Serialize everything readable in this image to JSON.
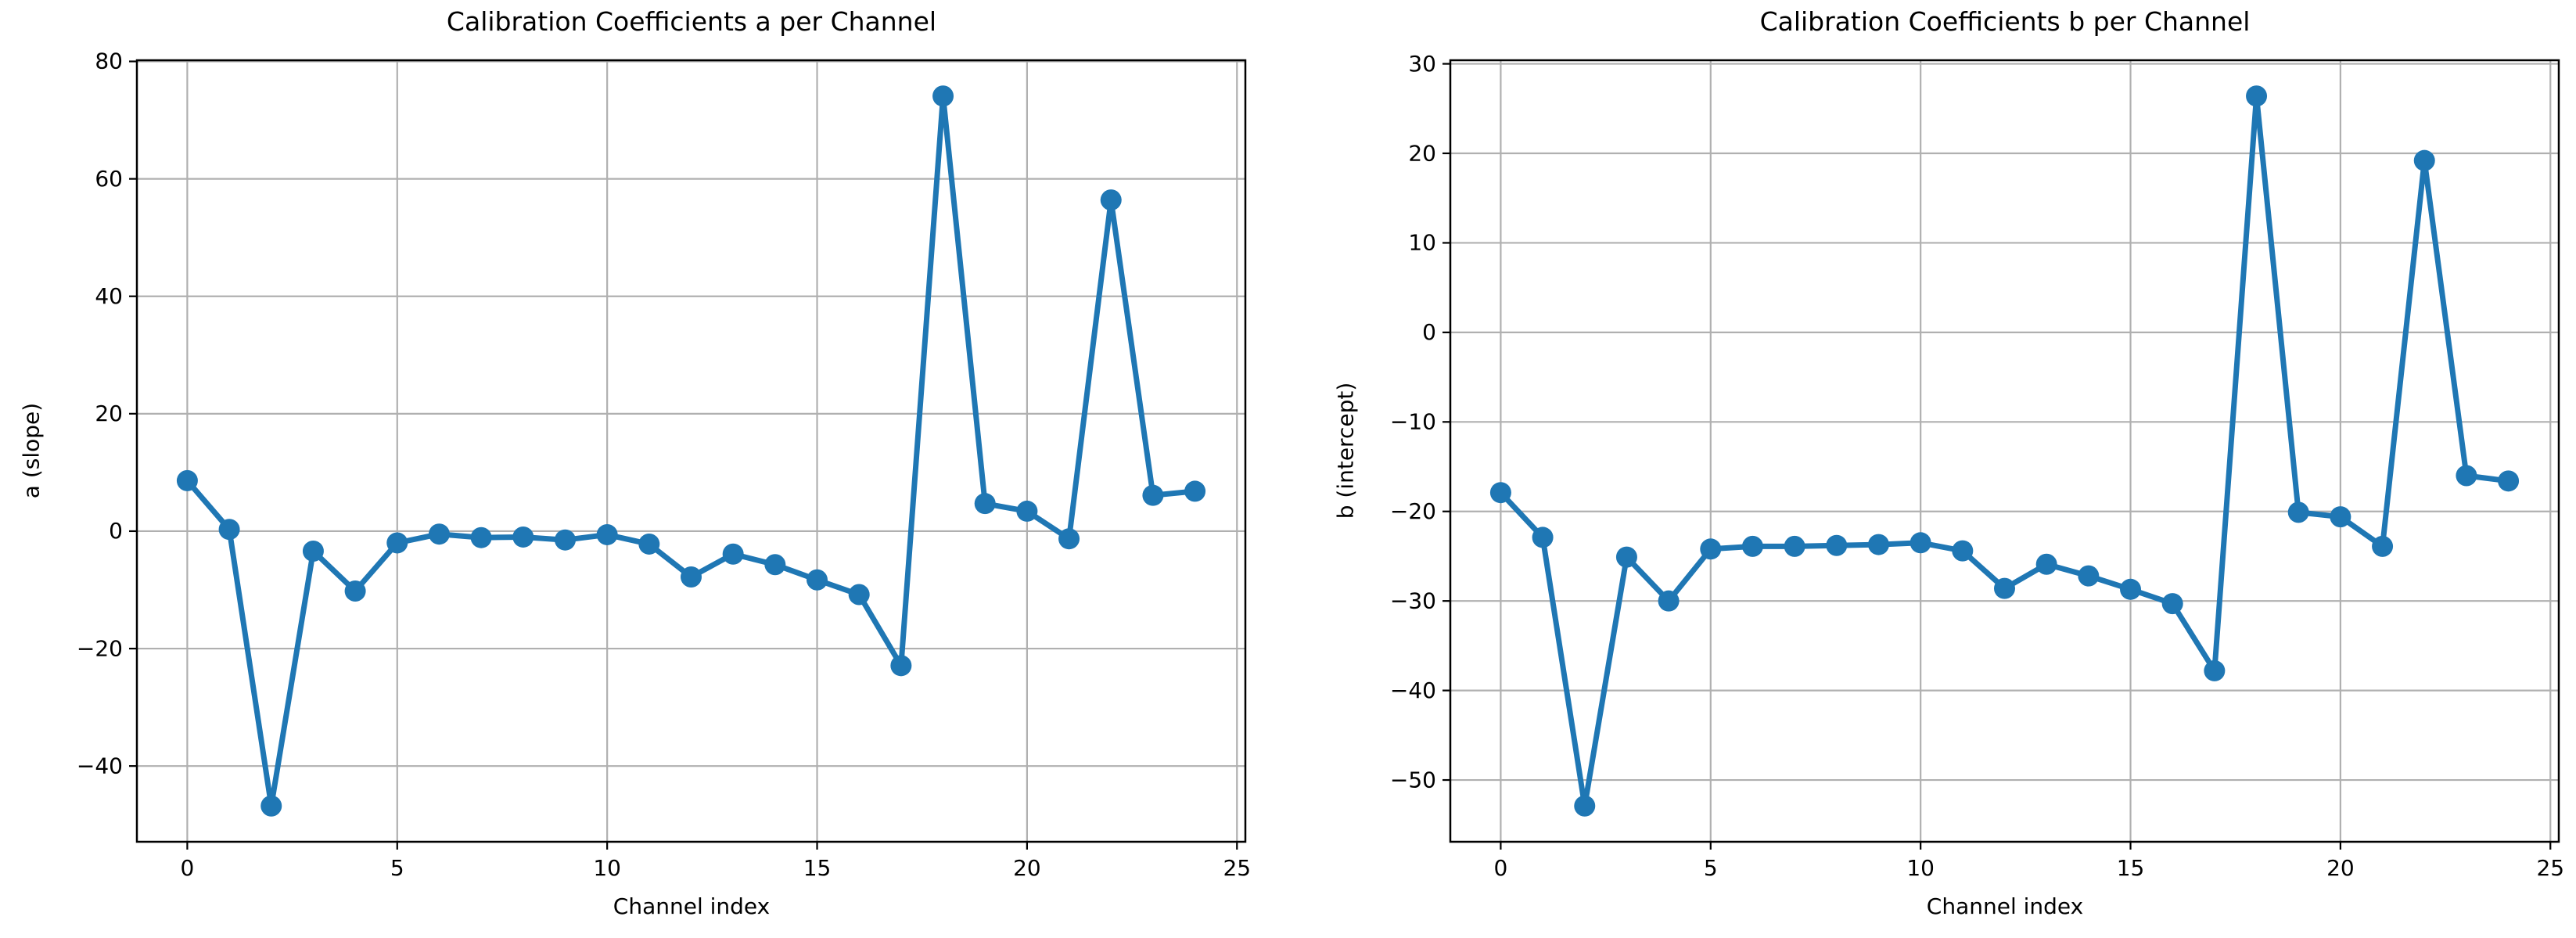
{
  "chart_data": [
    {
      "type": "line",
      "title": "Calibration Coefficients a per Channel",
      "xlabel": "Channel index",
      "ylabel": "a (slope)",
      "x": [
        0,
        1,
        2,
        3,
        4,
        5,
        6,
        7,
        8,
        9,
        10,
        11,
        12,
        13,
        14,
        15,
        16,
        17,
        18,
        19,
        20,
        21,
        22,
        23,
        24
      ],
      "series": [
        {
          "name": "a",
          "values": [
            8.6,
            0.3,
            -46.8,
            -3.4,
            -10.2,
            -2.0,
            -0.5,
            -1.1,
            -1.0,
            -1.5,
            -0.6,
            -2.2,
            -7.8,
            -3.9,
            -5.7,
            -8.3,
            -10.8,
            -22.9,
            74.1,
            4.7,
            3.4,
            -1.3,
            56.4,
            6.1,
            6.8
          ]
        }
      ],
      "xlim": [
        -1.2,
        25.2
      ],
      "ylim": [
        -52.9,
        80.2
      ],
      "xticks": [
        0,
        5,
        10,
        15,
        20,
        25
      ],
      "yticks": [
        -40,
        -20,
        0,
        20,
        40,
        60,
        80
      ],
      "grid": true,
      "legend": "none",
      "marker": "o",
      "line_color": "#1f77b4",
      "grid_color": "#b0b0b0",
      "spine_color": "#000000"
    },
    {
      "type": "line",
      "title": "Calibration Coefficients b per Channel",
      "xlabel": "Channel index",
      "ylabel": "b (intercept)",
      "x": [
        0,
        1,
        2,
        3,
        4,
        5,
        6,
        7,
        8,
        9,
        10,
        11,
        12,
        13,
        14,
        15,
        16,
        17,
        18,
        19,
        20,
        21,
        22,
        23,
        24
      ],
      "series": [
        {
          "name": "b",
          "values": [
            -17.9,
            -22.9,
            -52.9,
            -25.1,
            -30.0,
            -24.2,
            -23.9,
            -23.9,
            -23.8,
            -23.7,
            -23.5,
            -24.4,
            -28.6,
            -25.9,
            -27.2,
            -28.7,
            -30.3,
            -37.8,
            26.4,
            -20.1,
            -20.6,
            -23.9,
            19.2,
            -16.0,
            -16.6
          ]
        }
      ],
      "xlim": [
        -1.2,
        25.2
      ],
      "ylim": [
        -56.9,
        30.4
      ],
      "xticks": [
        0,
        5,
        10,
        15,
        20,
        25
      ],
      "yticks": [
        -50,
        -40,
        -30,
        -20,
        -10,
        0,
        10,
        20,
        30
      ],
      "grid": true,
      "legend": "none",
      "marker": "o",
      "line_color": "#1f77b4",
      "grid_color": "#b0b0b0",
      "spine_color": "#000000"
    }
  ]
}
